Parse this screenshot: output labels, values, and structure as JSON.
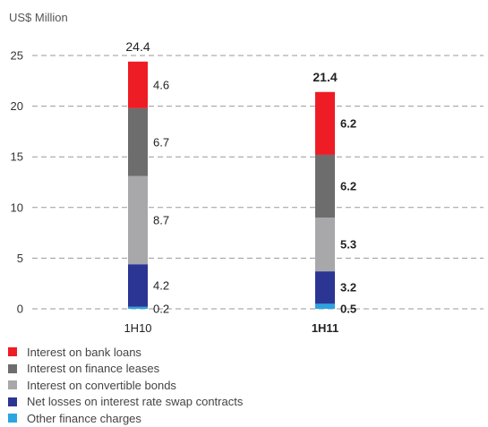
{
  "chart_data": {
    "type": "bar",
    "stacked": true,
    "unit_label": "US$ Million",
    "categories": [
      "1H10",
      "1H11"
    ],
    "category_bold": [
      false,
      true
    ],
    "totals": [
      "24.4",
      "21.4"
    ],
    "ylim": [
      0,
      25
    ],
    "yticks": [
      0,
      5,
      10,
      15,
      20,
      25
    ],
    "grid": true,
    "legend_position": "bottom-left",
    "series": [
      {
        "name": "Other finance charges",
        "color": "#2aa5e0",
        "values": [
          0.2,
          0.5
        ],
        "labels": [
          "0.2",
          "0.5"
        ]
      },
      {
        "name": "Net losses on interest rate swap contracts",
        "color": "#2b3594",
        "values": [
          4.2,
          3.2
        ],
        "labels": [
          "4.2",
          "3.2"
        ]
      },
      {
        "name": "Interest on convertible bonds",
        "color": "#a8a8ab",
        "values": [
          8.7,
          5.3
        ],
        "labels": [
          "8.7",
          "5.3"
        ]
      },
      {
        "name": "Interest on finance leases",
        "color": "#6d6d6d",
        "values": [
          6.7,
          6.2
        ],
        "labels": [
          "6.7",
          "6.2"
        ]
      },
      {
        "name": "Interest on bank loans",
        "color": "#ee1c25",
        "values": [
          4.6,
          6.2
        ],
        "labels": [
          "4.6",
          "6.2"
        ]
      }
    ],
    "legend_order": [
      4,
      3,
      2,
      1,
      0
    ]
  }
}
